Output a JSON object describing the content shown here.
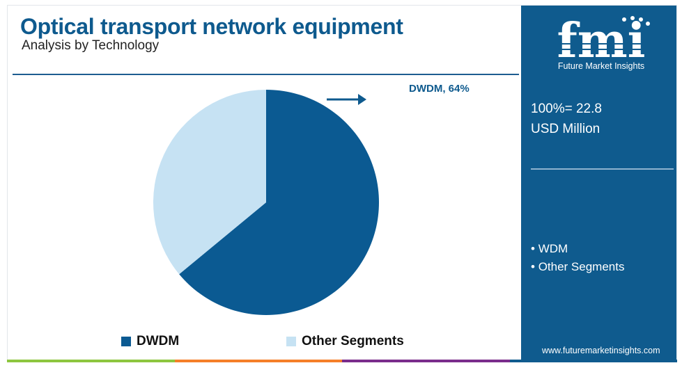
{
  "header": {
    "title": "Optical transport network equipment",
    "subtitle": "Analysis by Technology"
  },
  "chart_data": {
    "type": "pie",
    "title": "Optical transport network equipment",
    "subtitle": "Analysis by Technology",
    "slices": [
      {
        "label": "DWDM",
        "value": 64,
        "color": "#0b5a92"
      },
      {
        "label": "Other Segments",
        "value": 36,
        "color": "#c6e2f3"
      }
    ],
    "callout": "DWDM, 64%",
    "legend": [
      "DWDM",
      "Other Segments"
    ],
    "legend_position": "bottom"
  },
  "sidebar": {
    "logo_text": "fmi",
    "tagline": "Future Market Insights",
    "total_value": "100%= 22.8",
    "total_unit": "USD Million",
    "bullets": [
      "WDM",
      "Other Segments"
    ],
    "website": "www.futuremarketinsights.com"
  },
  "colors": {
    "brand_blue": "#0f5b8e",
    "title_blue": "#0e5a8e",
    "strip": [
      "#8dc63f",
      "#f57f29",
      "#7a2d8c",
      "#0f5b8e"
    ]
  }
}
